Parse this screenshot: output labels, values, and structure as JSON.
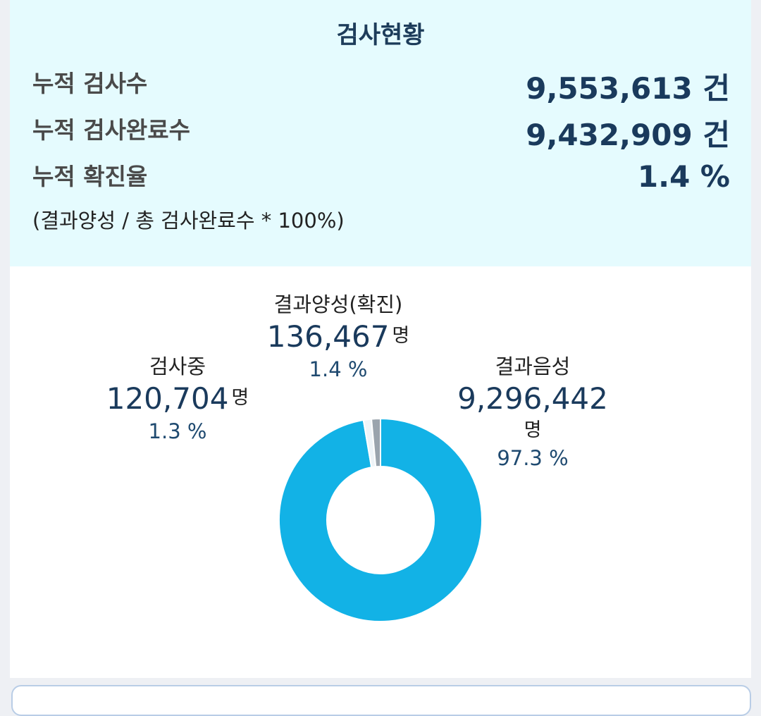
{
  "summary": {
    "title": "검사현황",
    "rows": [
      {
        "label": "누적 검사수",
        "value": "9,553,613 건"
      },
      {
        "label": "누적 검사완료수",
        "value": "9,432,909 건"
      },
      {
        "label": "누적 확진율",
        "value": "1.4 %"
      }
    ],
    "formula_note": "(결과양성 / 총 검사완료수 * 100%)"
  },
  "chart_data": {
    "type": "pie",
    "variant": "donut",
    "unit": "명",
    "slices": [
      {
        "name": "결과음성",
        "count": 9296442,
        "count_label": "9,296,442",
        "percent": 97.3,
        "percent_label": "97.3 %",
        "color": "#12b2e6"
      },
      {
        "name": "검사중",
        "count": 120704,
        "count_label": "120,704",
        "percent": 1.3,
        "percent_label": "1.3 %",
        "color": "#eef4f8"
      },
      {
        "name": "결과양성(확진)",
        "count": 136467,
        "count_label": "136,467",
        "percent": 1.4,
        "percent_label": "1.4 %",
        "color": "#9aa4ad"
      }
    ]
  },
  "colors": {
    "summary_bg": "#e5fbfe",
    "accent": "#12b2e6",
    "value_text": "#1a3a5c"
  }
}
